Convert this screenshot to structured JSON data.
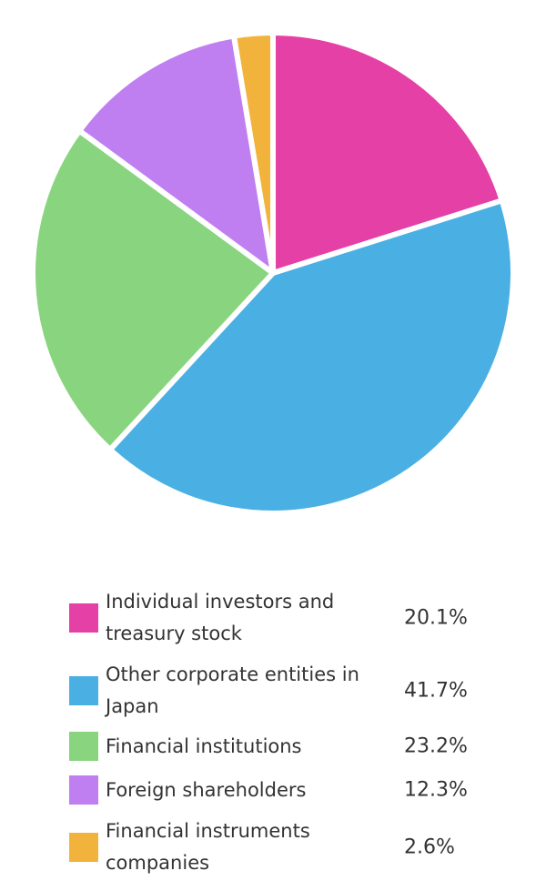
{
  "chart_data": {
    "type": "pie",
    "unit": "%",
    "slices": [
      {
        "label": "Individual investors and treasury stock",
        "value": 20.1,
        "value_label": "20.1%",
        "color": "#e540a5"
      },
      {
        "label": "Other corporate entities in Japan",
        "value": 41.7,
        "value_label": "41.7%",
        "color": "#4ab0e4"
      },
      {
        "label": "Financial institutions",
        "value": 23.2,
        "value_label": "23.2%",
        "color": "#89d47f"
      },
      {
        "label": "Foreign shareholders",
        "value": 12.3,
        "value_label": "12.3%",
        "color": "#c07ff0"
      },
      {
        "label": "Financial instruments companies",
        "value": 2.6,
        "value_label": "2.6%",
        "color": "#f2b33d"
      }
    ],
    "start": "12 o'clock",
    "direction": "clockwise",
    "legend_position": "bottom"
  }
}
